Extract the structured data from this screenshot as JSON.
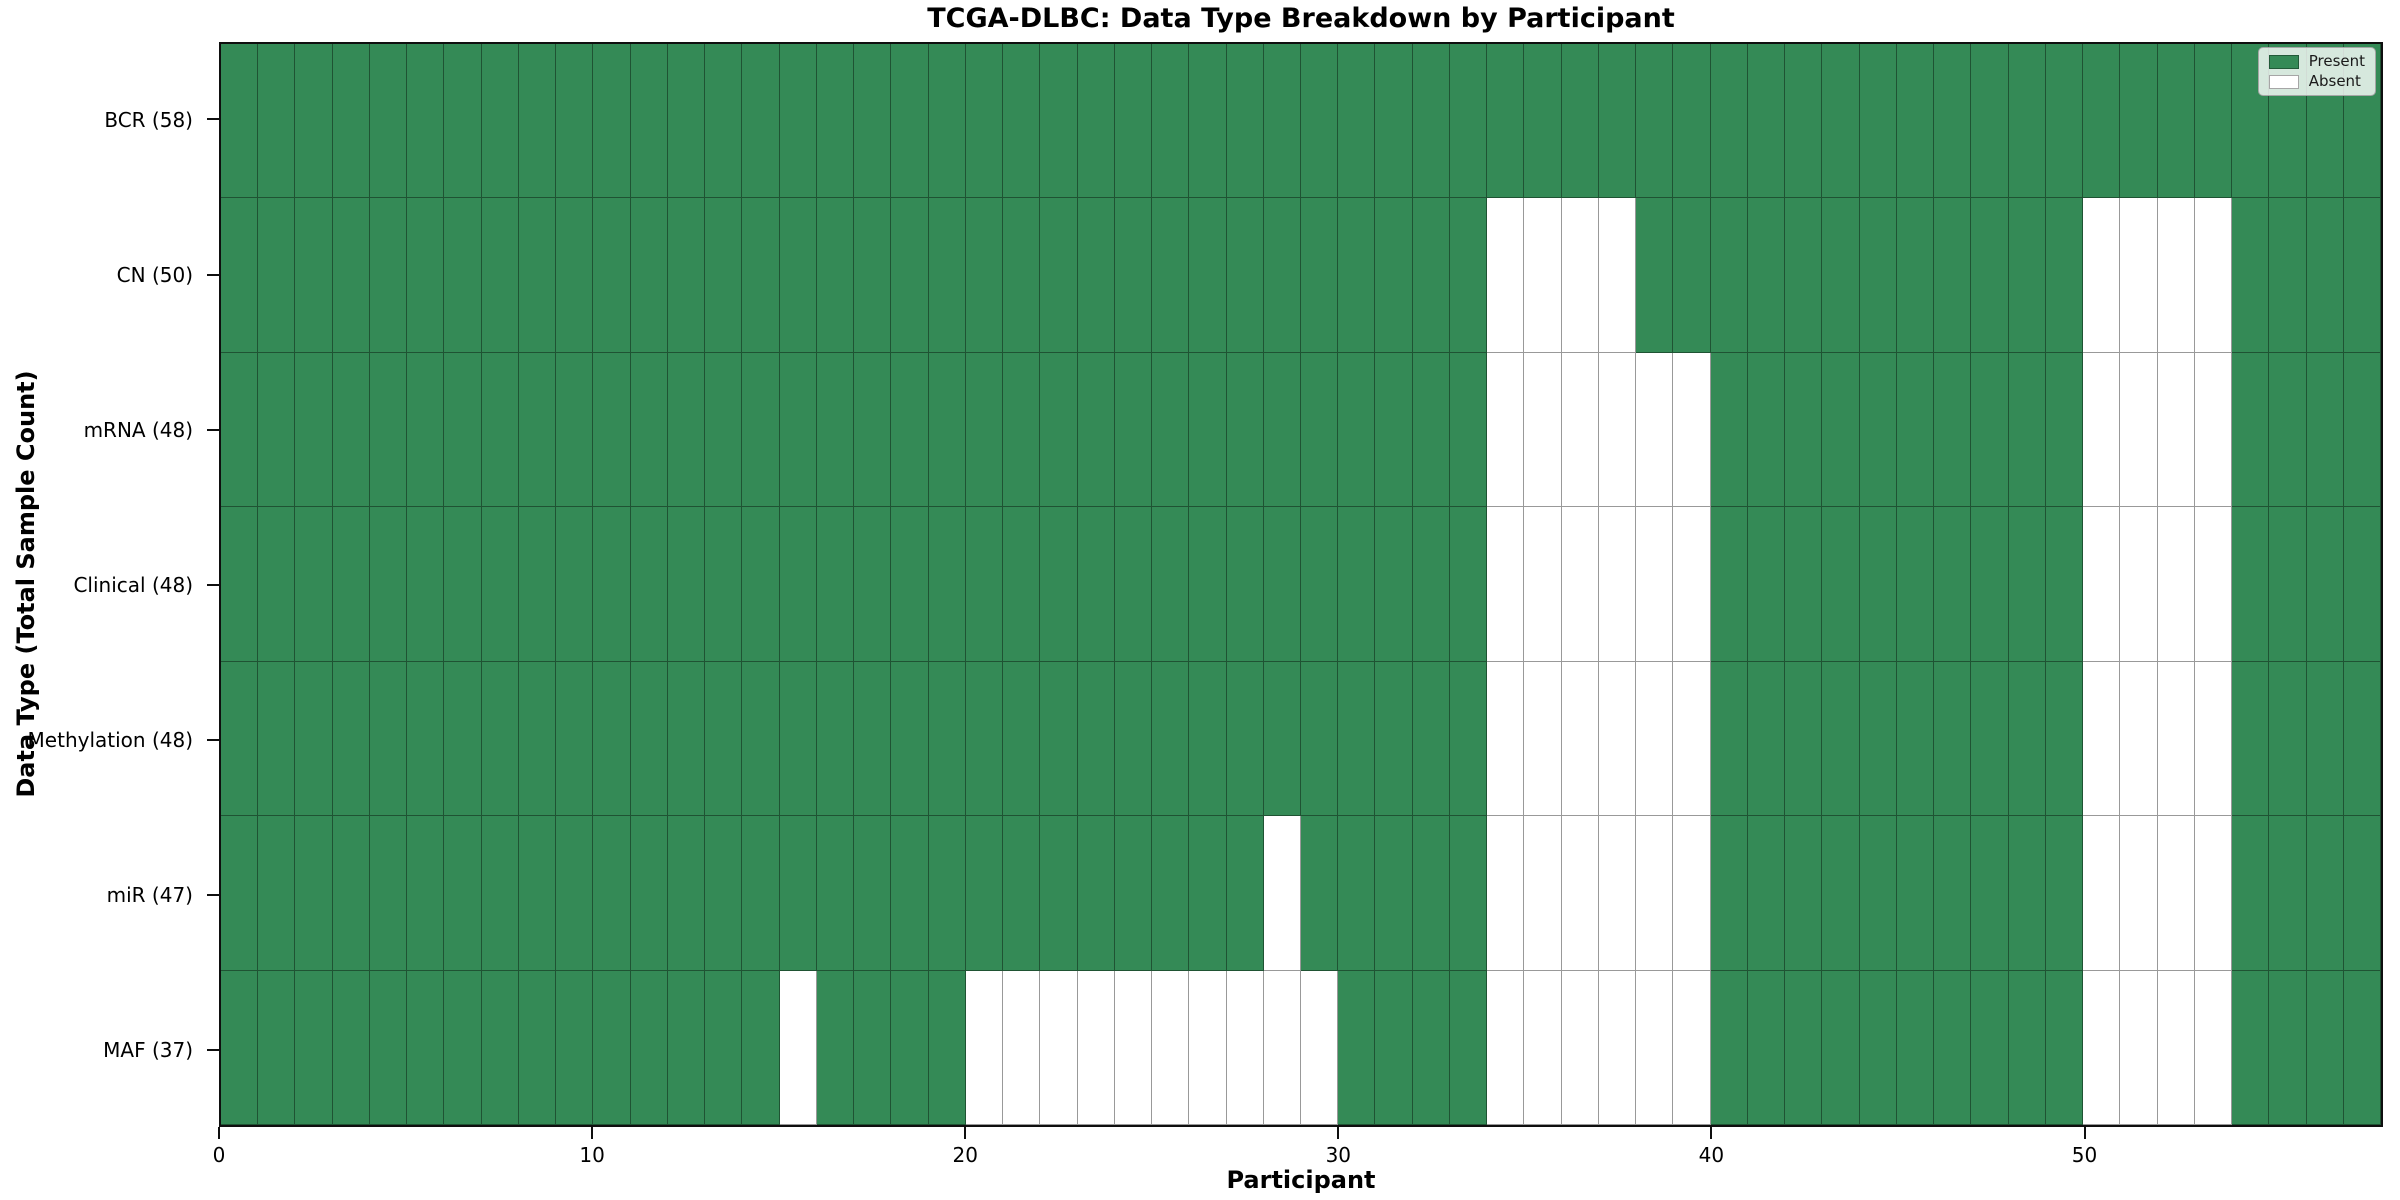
{
  "chart_data": {
    "type": "heatmap",
    "title": "TCGA-DLBC: Data Type Breakdown by Participant",
    "xlabel": "Participant",
    "ylabel": "Data Type (Total Sample Count)",
    "n_participants": 58,
    "xlim": [
      0,
      58
    ],
    "x_ticks": [
      0,
      10,
      20,
      30,
      40,
      50
    ],
    "grid": "cell-borders",
    "colors": {
      "present": "#348a56",
      "absent": "#ffffff",
      "cell_edge": "rgba(0,0,0,0.40)",
      "axis": "#0f0f0f"
    },
    "legend": {
      "position": "upper right",
      "entries": [
        {
          "label": "Present",
          "color": "#348a56"
        },
        {
          "label": "Absent",
          "color": "#ffffff"
        }
      ]
    },
    "rows": [
      {
        "name": "BCR",
        "total": 58,
        "label": "BCR (58)",
        "absent": []
      },
      {
        "name": "CN",
        "total": 50,
        "label": "CN (50)",
        "absent": [
          34,
          35,
          36,
          37,
          50,
          51,
          52,
          53
        ]
      },
      {
        "name": "mRNA",
        "total": 48,
        "label": "mRNA (48)",
        "absent": [
          34,
          35,
          36,
          37,
          38,
          39,
          50,
          51,
          52,
          53
        ]
      },
      {
        "name": "Clinical",
        "total": 48,
        "label": "Clinical (48)",
        "absent": [
          34,
          35,
          36,
          37,
          38,
          39,
          50,
          51,
          52,
          53
        ]
      },
      {
        "name": "Methylation",
        "total": 48,
        "label": "Methylation (48)",
        "absent": [
          34,
          35,
          36,
          37,
          38,
          39,
          50,
          51,
          52,
          53
        ]
      },
      {
        "name": "miR",
        "total": 47,
        "label": "miR (47)",
        "absent": [
          28,
          34,
          35,
          36,
          37,
          38,
          39,
          50,
          51,
          52,
          53
        ]
      },
      {
        "name": "MAF",
        "total": 37,
        "label": "MAF (37)",
        "absent": [
          15,
          20,
          21,
          22,
          23,
          24,
          25,
          26,
          27,
          28,
          29,
          34,
          35,
          36,
          37,
          38,
          39,
          50,
          51,
          52,
          53
        ]
      }
    ]
  }
}
